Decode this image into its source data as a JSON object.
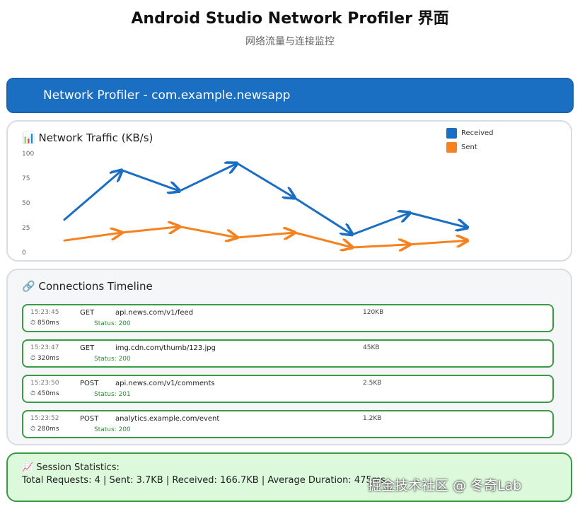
{
  "page": {
    "title": "Android Studio Network Profiler 界面",
    "subtitle": "网络流量与连接监控"
  },
  "header": {
    "title": "Network Profiler - com.example.newsapp"
  },
  "traffic_panel": {
    "icon": "bar-chart-icon",
    "icon_glyph": "📊",
    "title": "Network Traffic (KB/s)"
  },
  "chart_data": {
    "type": "line",
    "title": "Network Traffic (KB/s)",
    "y_ticks": [
      "0",
      "25",
      "50",
      "75",
      "100"
    ],
    "ylim": [
      0,
      100
    ],
    "x": [
      0,
      1,
      2,
      3,
      4,
      5,
      6,
      7
    ],
    "series": [
      {
        "name": "Received",
        "color": "#1b6fc2",
        "values": [
          33,
          83,
          62,
          90,
          55,
          18,
          40,
          25
        ]
      },
      {
        "name": "Sent",
        "color": "#f5821f",
        "values": [
          12,
          20,
          26,
          15,
          20,
          5,
          8,
          12
        ]
      }
    ],
    "legend_position": "top-right",
    "grid": false
  },
  "timeline_panel": {
    "icon": "link-icon",
    "icon_glyph": "🔗",
    "title": "Connections Timeline"
  },
  "connections": [
    {
      "time": "15:23:45",
      "method": "GET",
      "url": "api.news.com/v1/feed",
      "size": "120KB",
      "duration": "⏱ 850ms",
      "status": "Status: 200"
    },
    {
      "time": "15:23:47",
      "method": "GET",
      "url": "img.cdn.com/thumb/123.jpg",
      "size": "45KB",
      "duration": "⏱ 320ms",
      "status": "Status: 200"
    },
    {
      "time": "15:23:50",
      "method": "POST",
      "url": "api.news.com/v1/comments",
      "size": "2.5KB",
      "duration": "⏱ 450ms",
      "status": "Status: 201"
    },
    {
      "time": "15:23:52",
      "method": "POST",
      "url": "analytics.example.com/event",
      "size": "1.2KB",
      "duration": "⏱ 280ms",
      "status": "Status: 200"
    }
  ],
  "stats": {
    "icon": "trend-chart-icon",
    "title": "📈 Session Statistics:",
    "line": "Total Requests: 4  |  Sent: 3.7KB  |  Received: 166.7KB  |  Average Duration: 475ms"
  },
  "watermark": "掘金技术社区 @ 冬奇Lab",
  "colors": {
    "header_bg": "#1b6fc2",
    "success": "#3a9b43",
    "stats_bg": "#dcfadb"
  }
}
